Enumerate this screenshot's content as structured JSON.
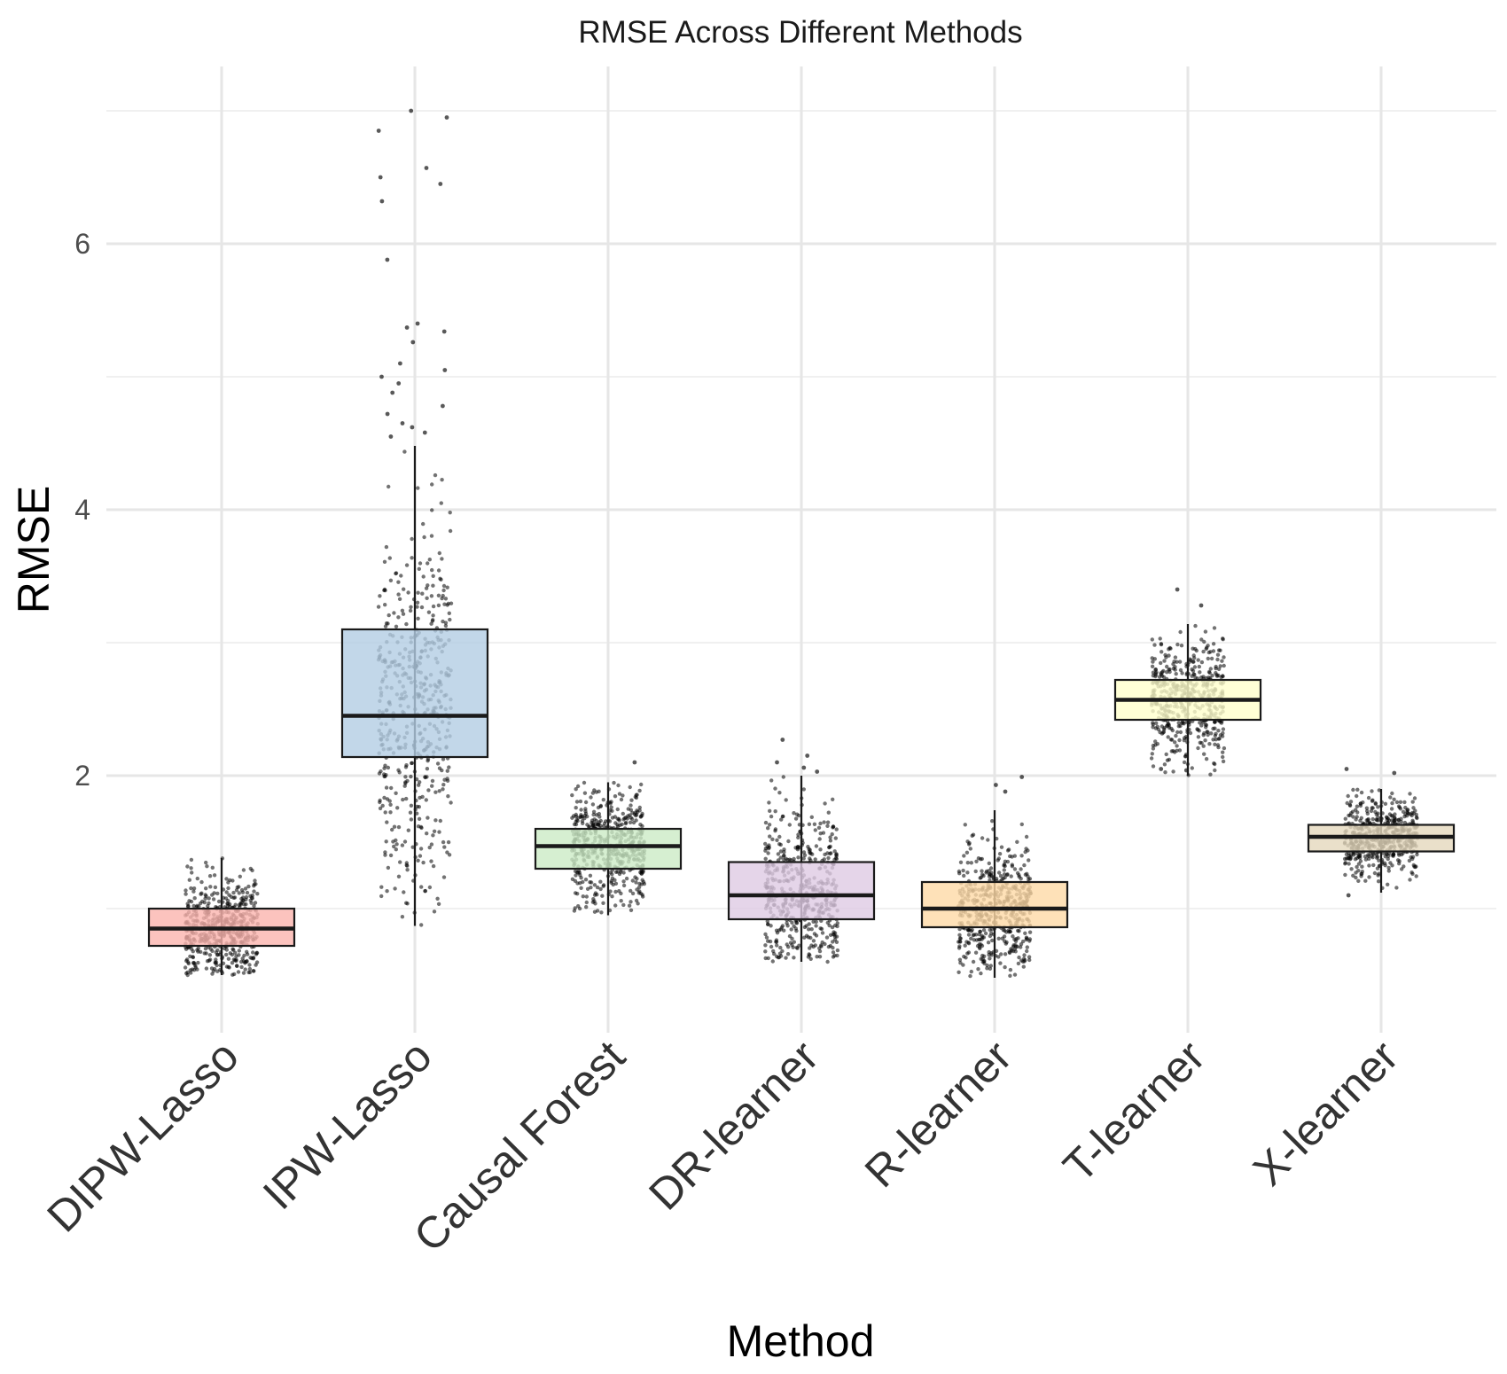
{
  "chart_data": {
    "type": "box",
    "title": "RMSE Across Different Methods",
    "xlabel": "Method",
    "ylabel": "RMSE",
    "ylim": [
      0.4,
      7.2
    ],
    "yticks": [
      2,
      4,
      6
    ],
    "grid": true,
    "legend": "none",
    "categories": [
      "DIPW-Lasso",
      "IPW-Lasso",
      "Causal Forest",
      "DR-learner",
      "R-learner",
      "T-learner",
      "X-learner"
    ],
    "colors": [
      "#fbb4ae",
      "#b3cde3",
      "#ccebc5",
      "#decbe4",
      "#fed9a6",
      "#ffffcc",
      "#e5d8bd"
    ],
    "series": [
      {
        "name": "DIPW-Lasso",
        "whisker_low": 0.5,
        "q1": 0.72,
        "median": 0.85,
        "q3": 1.0,
        "whisker_high": 1.38,
        "outliers": []
      },
      {
        "name": "IPW-Lasso",
        "whisker_low": 0.87,
        "q1": 2.14,
        "median": 2.45,
        "q3": 3.1,
        "whisker_high": 4.48,
        "outliers": [
          7.0,
          6.95,
          6.85,
          6.57,
          6.5,
          6.45,
          6.32,
          5.88,
          5.4,
          5.37,
          5.34,
          5.26,
          5.1,
          5.05,
          5.0,
          4.95,
          4.88,
          4.78,
          4.72,
          4.65,
          4.62,
          4.58,
          4.55
        ]
      },
      {
        "name": "Causal Forest",
        "whisker_low": 0.95,
        "q1": 1.3,
        "median": 1.47,
        "q3": 1.6,
        "whisker_high": 1.95,
        "outliers": [
          2.1
        ]
      },
      {
        "name": "DR-learner",
        "whisker_low": 0.6,
        "q1": 0.92,
        "median": 1.1,
        "q3": 1.35,
        "whisker_high": 2.0,
        "outliers": [
          2.27,
          2.15,
          2.1,
          2.06,
          2.03
        ]
      },
      {
        "name": "R-learner",
        "whisker_low": 0.48,
        "q1": 0.86,
        "median": 1.0,
        "q3": 1.2,
        "whisker_high": 1.74,
        "outliers": [
          1.99,
          1.93,
          1.88
        ]
      },
      {
        "name": "T-learner",
        "whisker_low": 2.0,
        "q1": 2.42,
        "median": 2.57,
        "q3": 2.72,
        "whisker_high": 3.14,
        "outliers": [
          3.4,
          3.28,
          2.05,
          2.04
        ]
      },
      {
        "name": "X-learner",
        "whisker_low": 1.12,
        "q1": 1.43,
        "median": 1.54,
        "q3": 1.63,
        "whisker_high": 1.9,
        "outliers": [
          2.05,
          2.02,
          1.1
        ]
      }
    ]
  }
}
